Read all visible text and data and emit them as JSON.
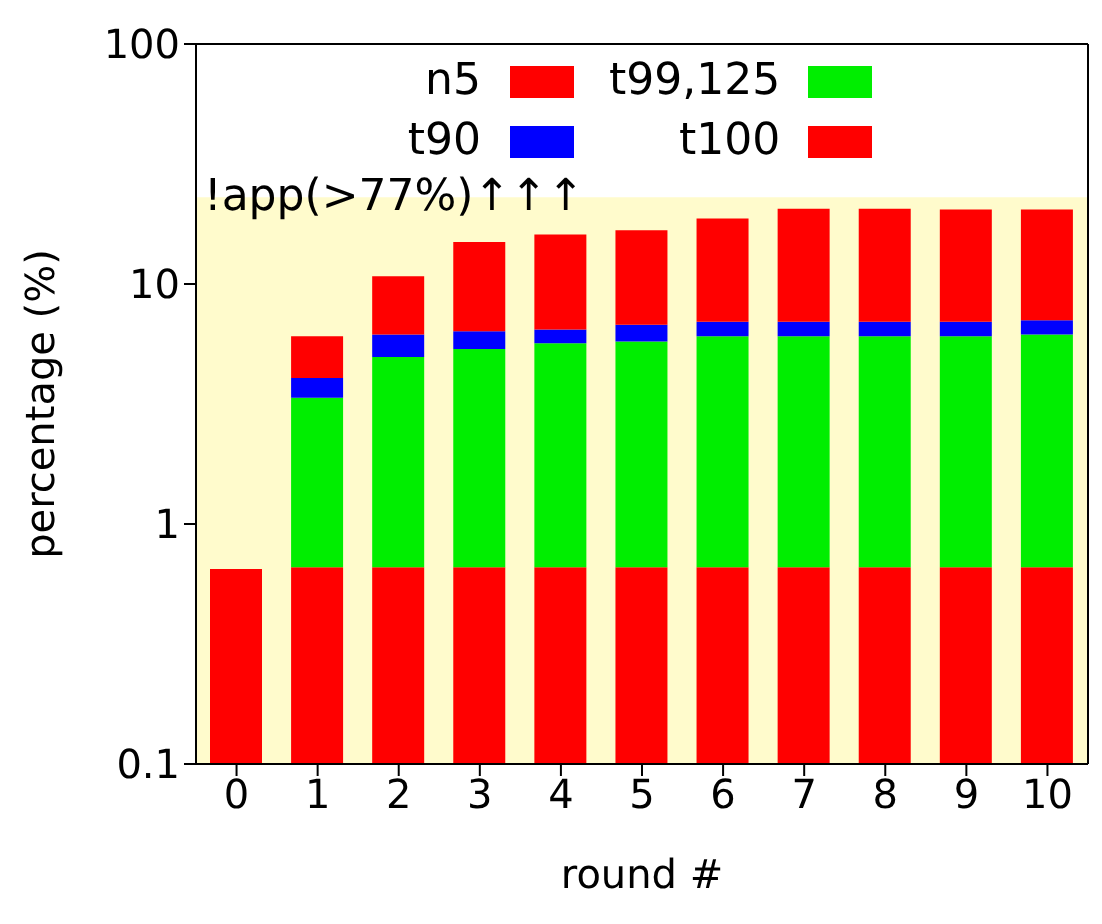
{
  "chart_data": {
    "type": "bar",
    "stacked": true,
    "log": "y",
    "xlabel": "round #",
    "ylabel": "percentage (%)",
    "categories": [
      "0",
      "1",
      "2",
      "3",
      "4",
      "5",
      "6",
      "7",
      "8",
      "9",
      "10"
    ],
    "series": [
      {
        "name": "t100",
        "color": "#ff0000",
        "values": [
          0.65,
          0.66,
          0.66,
          0.66,
          0.66,
          0.66,
          0.66,
          0.66,
          0.66,
          0.66,
          0.66
        ]
      },
      {
        "name": "t99,125",
        "color": "#00ee00",
        "values": [
          null,
          2.7,
          4.3,
          4.7,
          5.0,
          5.1,
          5.4,
          5.4,
          5.4,
          5.4,
          5.5
        ]
      },
      {
        "name": "t90",
        "color": "#0000ff",
        "values": [
          null,
          0.7,
          1.2,
          1.0,
          0.8,
          1.0,
          0.9,
          0.9,
          0.9,
          0.9,
          0.9
        ]
      },
      {
        "name": "n5",
        "color": "#ff0000",
        "values": [
          null,
          2.0,
          4.6,
          8.6,
          9.6,
          10.0,
          11.8,
          13.6,
          13.6,
          13.5,
          13.4
        ]
      }
    ],
    "ylim": [
      0.1,
      100
    ],
    "yticks": [
      0.1,
      1,
      10,
      100
    ],
    "bands": [
      {
        "axis": "y",
        "from": 0.1,
        "to": 23,
        "label": "!app(>77%)↑↑↑",
        "color": "#fffbcc"
      }
    ],
    "legend": "top"
  }
}
